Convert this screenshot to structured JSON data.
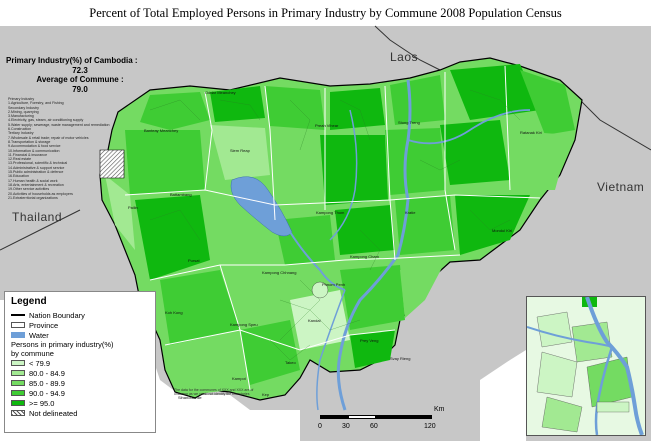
{
  "title": "Percent of Total Employed Persons in Primary Industry by Commune  2008 Population Census",
  "stats": {
    "primary_label": "Primary Industry(%) of Cambodia :",
    "primary_value": "72.3",
    "average_label": "Average of Commune :",
    "average_value": "79.0"
  },
  "notes": [
    "Primary Industry",
    "1.Agriculture, Forestry, and Fishing",
    "Secondary Industry",
    "2.Mining, quarrying",
    "3.Manufacturing",
    "4.Electricity, gas, steam, air conditioning supply",
    "5.Water supply; sewerage, waste management and remediation",
    "6.Construction",
    "Tertiary Industry",
    "7.Wholesale & retail trade; repair of motor vehicles",
    "8.Transportation & storage",
    "9.Accommodation & food service",
    "10.Information & communication",
    "11.Financial & insurance",
    "12.Real estate",
    "13.Professional, scientific & technical",
    "14.Administrative & support service",
    "15.Public administration & defence",
    "16.Education",
    "17.Human health & social work",
    "18.Arts, entertainment & recreation",
    "19.Other service activities",
    "20.Activities of households as employers",
    "21.Extraterritorial organizations"
  ],
  "countries": {
    "laos": "Laos",
    "thailand": "Thailand",
    "vietnam": "Vietnam"
  },
  "places": {
    "oddar_meanchey": "Oddar Meanchey",
    "preah_vihear": "Preah Vihear",
    "stung_treng": "Stung Treng",
    "ratanak_kiri": "Ratanak Kiri",
    "banteay_meanchey": "Banteay Meanchey",
    "siem_reap": "Siem Reap",
    "battambang": "Battambang",
    "pailin": "Pailin",
    "kampong_thom": "Kampong Thom",
    "kratie": "Kratie",
    "mondul_kiri": "Mondul Kiri",
    "pursat": "Pursat",
    "kampong_chhnang": "Kampong Chhnang",
    "kampong_cham": "Kampong Cham",
    "kampong_speu": "Kampong Speu",
    "koh_kong": "Koh Kong",
    "kandal": "Kandal",
    "prey_veng": "Prey Veng",
    "svay_rieng": "Svay Rieng",
    "takeo": "Takeo",
    "kampot": "Kampot",
    "sihanoukville": "Sihanoukville",
    "kep": "Kep",
    "phnom_penh": "Phnom Penh"
  },
  "legend": {
    "title": "Legend",
    "nation_boundary": "Nation Boundary",
    "province": "Province",
    "water": "Water",
    "subtitle_1": "Persons in primary industry(%)",
    "subtitle_2": "by commune",
    "classes": [
      {
        "label": "< 79.9",
        "color": "#ccf5c4"
      },
      {
        "label": "80.0 - 84.9",
        "color": "#a2e992"
      },
      {
        "label": "85.0 - 89.9",
        "color": "#74db62"
      },
      {
        "label": "90.0 - 94.9",
        "color": "#3fcc34"
      },
      {
        "label": ">= 95.0",
        "color": "#0fb80f"
      }
    ],
    "not_delineated": "Not delineated"
  },
  "scale": {
    "unit": "Km",
    "ticks": [
      "0",
      "30",
      "60",
      "120"
    ]
  },
  "credit": "The data for the communes of XXX and XXX are of unknown as we could not identify the boundaries",
  "colors": {
    "water": "#6e9fd8",
    "land_outside": "#c8c8c8",
    "boundary": "#000000",
    "province": "#ffffff",
    "not_delineated": "#999999"
  }
}
